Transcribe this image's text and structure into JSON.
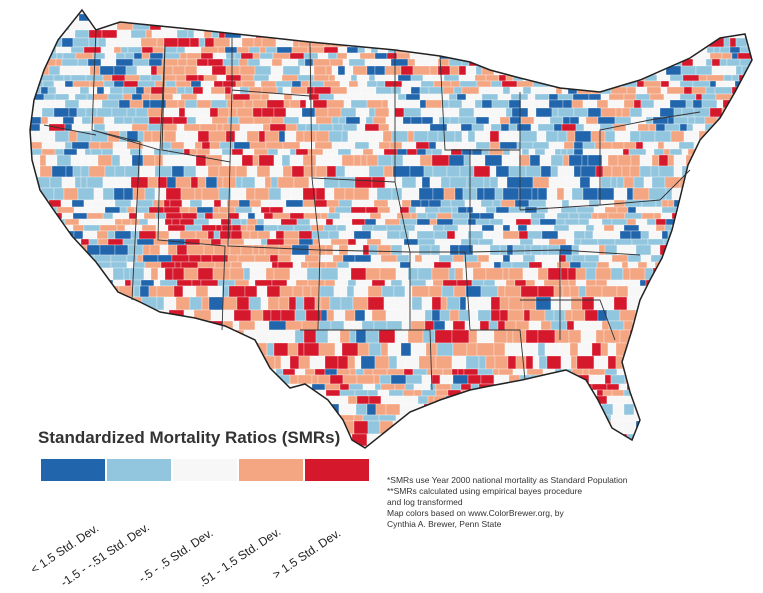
{
  "legend": {
    "title": "Standardized Mortality Ratios (SMRs)",
    "classes": [
      {
        "label": "< 1.5 Std. Dev.",
        "color": "#2166ac"
      },
      {
        "label": "-1.5 - -.51 Std. Dev.",
        "color": "#92c5de"
      },
      {
        "label": "-.5 - .5 Std. Dev.",
        "color": "#f7f7f7"
      },
      {
        "label": ".51 - 1.5 Std. Dev.",
        "color": "#f4a582"
      },
      {
        "label": "> 1.5 Std. Dev.",
        "color": "#d6182c"
      }
    ]
  },
  "notes": [
    "*SMRs use Year 2000 national mortality as Standard Population",
    "**SMRs calculated using empirical bayes procedure",
    "and log transformed",
    "Map colors based on www.ColorBrewer.org, by",
    "Cynthia A. Brewer, Penn State"
  ],
  "map": {
    "region": "Contiguous United States",
    "units": "counties",
    "boundaries": "state outlines"
  }
}
